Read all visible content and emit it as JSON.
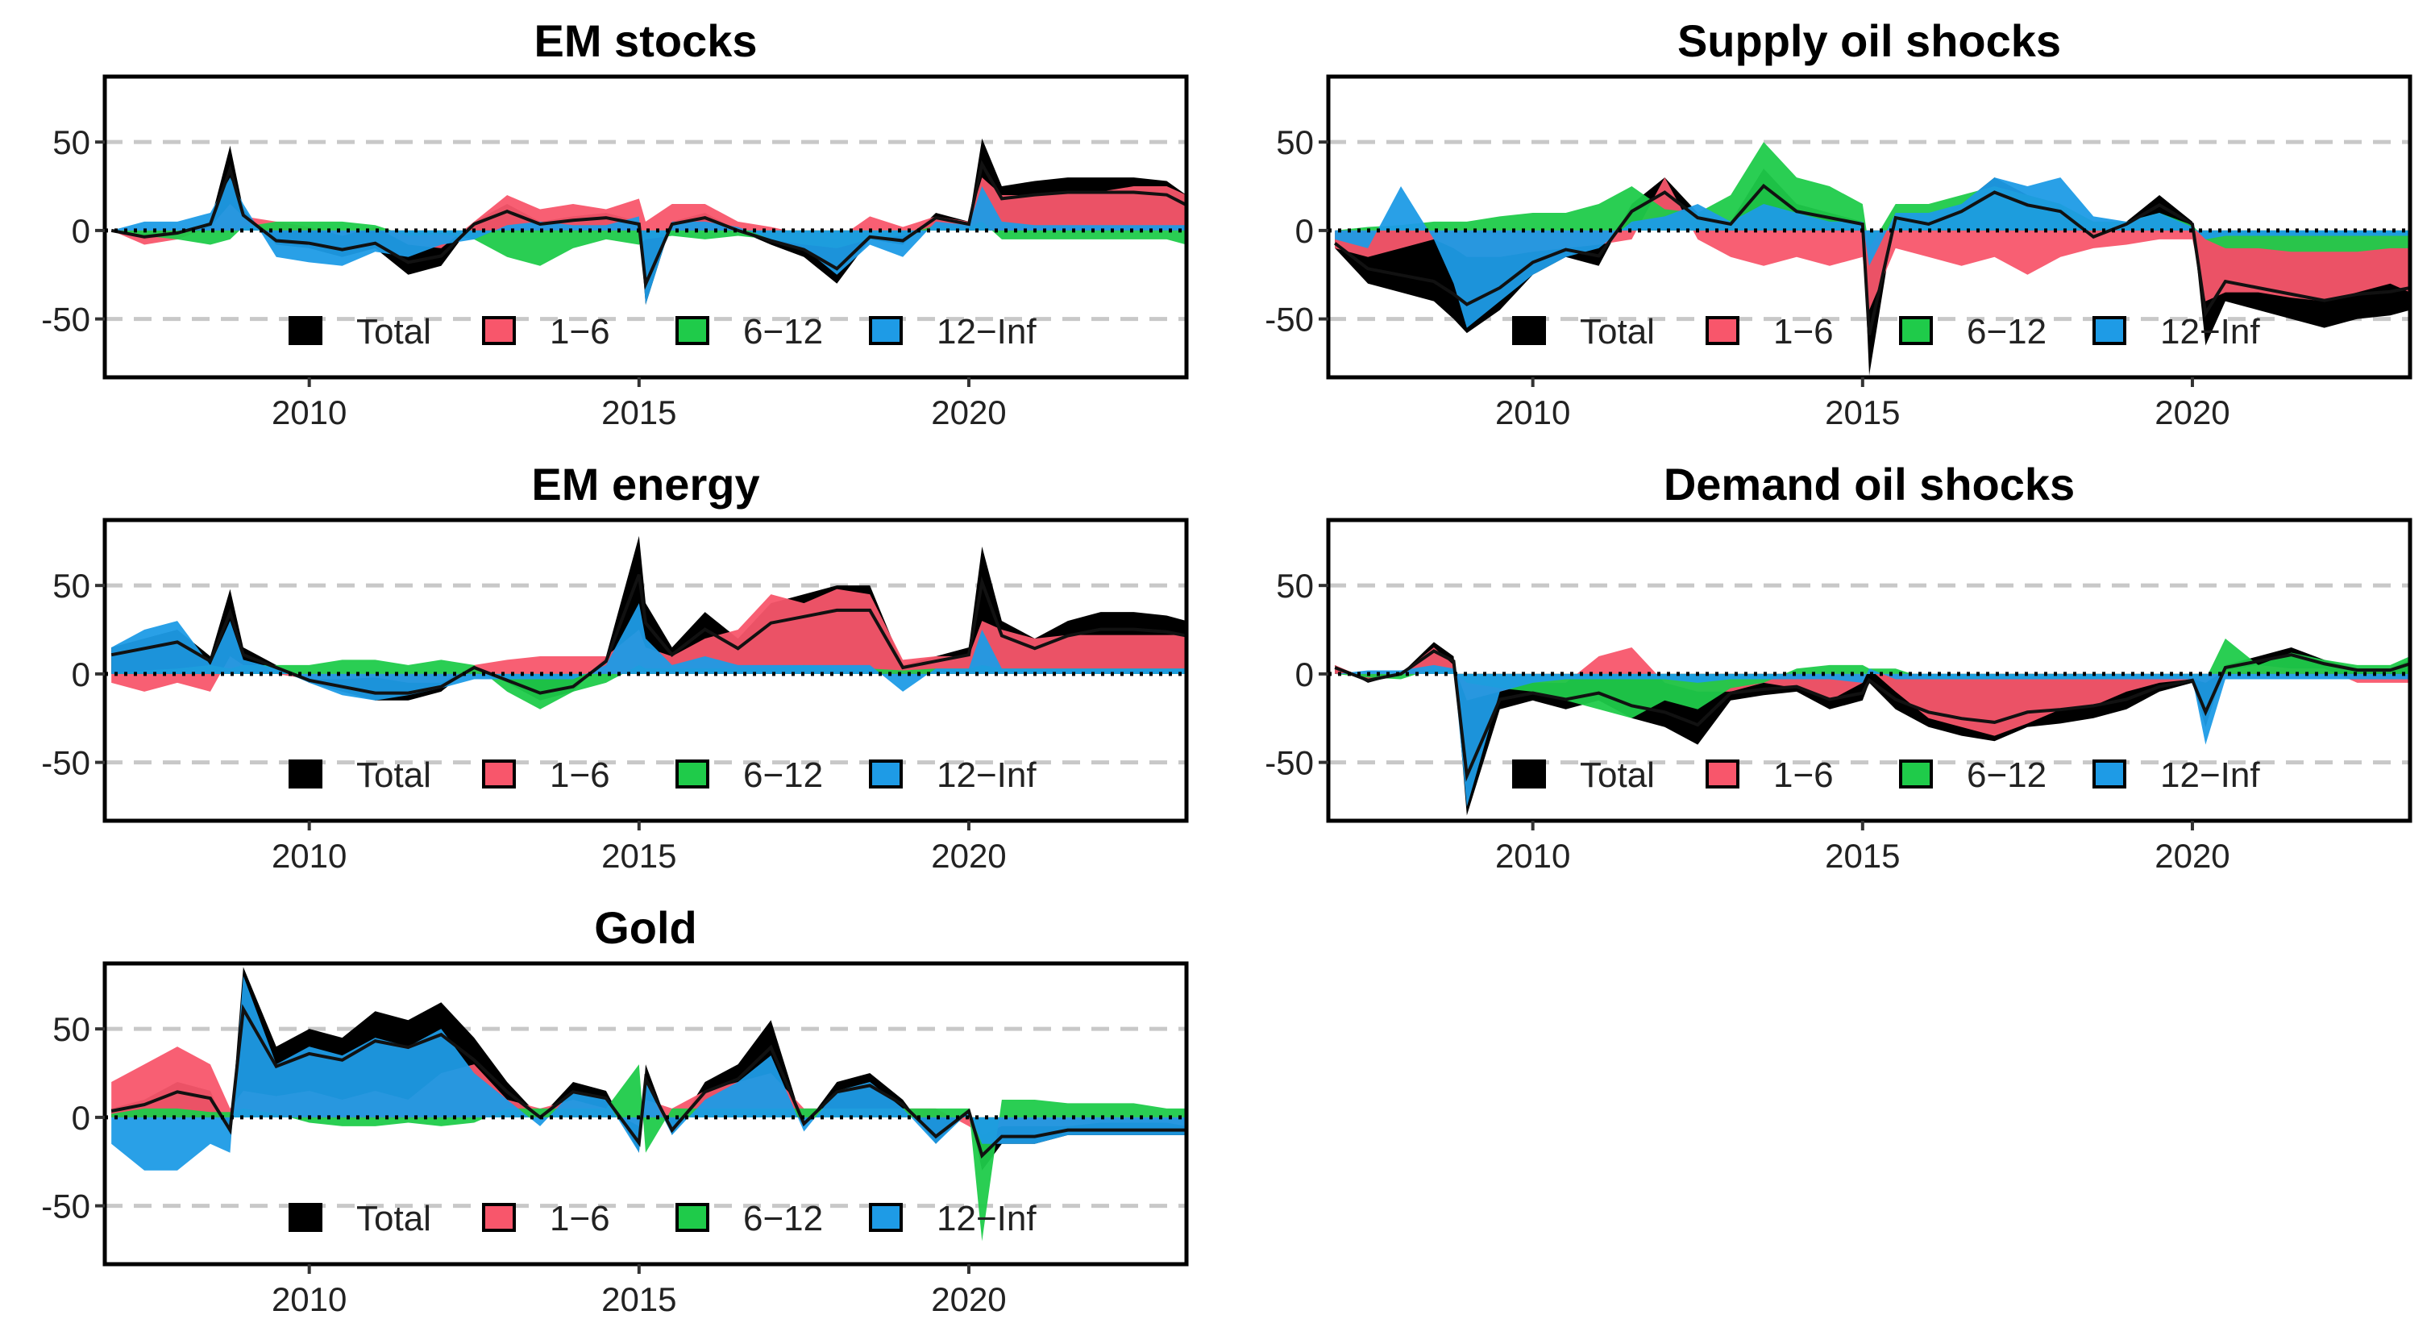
{
  "figure": {
    "legend": [
      "Total",
      "1−6",
      "6−12",
      "12−Inf"
    ],
    "colors": {
      "Total": "#000000",
      "1-6": "#F8566B",
      "6-12": "#1FCB4A",
      "12-Inf": "#1E9BE6",
      "line": "#111111",
      "grid": "#c8c8c8"
    }
  },
  "chart_data": [
    {
      "type": "area",
      "title": "EM stocks",
      "x": [
        2007,
        2007.5,
        2008,
        2008.5,
        2008.8,
        2009,
        2009.5,
        2010,
        2010.5,
        2011,
        2011.5,
        2012,
        2012.5,
        2013,
        2013.5,
        2014,
        2014.5,
        2015,
        2015.1,
        2015.5,
        2016,
        2016.5,
        2017,
        2017.5,
        2018,
        2018.5,
        2019,
        2019.5,
        2020,
        2020.2,
        2020.5,
        2021,
        2021.5,
        2022,
        2022.5,
        2023,
        2023.3
      ],
      "series": [
        {
          "name": "Total",
          "values": [
            0,
            -5,
            -2,
            5,
            48,
            12,
            -8,
            -10,
            -15,
            -10,
            -25,
            -20,
            5,
            15,
            5,
            8,
            10,
            5,
            -42,
            5,
            10,
            0,
            -8,
            -15,
            -30,
            -5,
            -8,
            10,
            5,
            52,
            25,
            28,
            30,
            30,
            30,
            28,
            20
          ]
        },
        {
          "name": "1-6",
          "values": [
            0,
            -8,
            -5,
            2,
            15,
            8,
            5,
            2,
            -3,
            2,
            -8,
            -10,
            5,
            20,
            12,
            15,
            12,
            18,
            5,
            15,
            15,
            5,
            2,
            -2,
            -5,
            8,
            2,
            8,
            5,
            30,
            20,
            20,
            22,
            22,
            25,
            25,
            20
          ]
        },
        {
          "name": "6-12",
          "values": [
            0,
            -3,
            -5,
            -8,
            -5,
            2,
            5,
            5,
            5,
            3,
            -3,
            -2,
            -5,
            -15,
            -20,
            -10,
            -5,
            -8,
            -5,
            -3,
            -5,
            -3,
            -5,
            -8,
            -10,
            -5,
            -3,
            3,
            2,
            5,
            -5,
            -5,
            -5,
            -5,
            -5,
            -5,
            -8
          ]
        },
        {
          "name": "12-Inf",
          "values": [
            0,
            5,
            5,
            10,
            30,
            15,
            -15,
            -18,
            -20,
            -12,
            -15,
            -8,
            -5,
            3,
            5,
            3,
            3,
            8,
            -42,
            5,
            5,
            2,
            -5,
            -10,
            -25,
            -8,
            -15,
            5,
            3,
            25,
            5,
            3,
            3,
            3,
            3,
            3,
            3
          ]
        }
      ],
      "xlim": [
        2006.9,
        2023.3
      ],
      "ylim": [
        -83,
        87
      ],
      "xticks": [
        2010,
        2015,
        2020
      ],
      "yticks": [
        50,
        0,
        -50
      ]
    },
    {
      "type": "area",
      "title": "Supply oil shocks",
      "x": [
        2007,
        2007.5,
        2008,
        2008.5,
        2008.8,
        2009,
        2009.5,
        2010,
        2010.5,
        2011,
        2011.5,
        2012,
        2012.5,
        2013,
        2013.5,
        2014,
        2014.5,
        2015,
        2015.1,
        2015.5,
        2016,
        2016.5,
        2017,
        2017.5,
        2018,
        2018.5,
        2019,
        2019.5,
        2020,
        2020.2,
        2020.5,
        2021,
        2021.5,
        2022,
        2022.5,
        2023,
        2023.3
      ],
      "series": [
        {
          "name": "Total",
          "values": [
            -10,
            -30,
            -35,
            -40,
            -50,
            -58,
            -45,
            -25,
            -15,
            -20,
            15,
            30,
            10,
            5,
            35,
            15,
            10,
            5,
            -82,
            10,
            5,
            15,
            30,
            20,
            15,
            -5,
            5,
            20,
            5,
            -65,
            -40,
            -45,
            -50,
            -55,
            -50,
            -48,
            -45
          ]
        },
        {
          "name": "1-6",
          "values": [
            -10,
            -15,
            -10,
            -5,
            -10,
            -15,
            -15,
            -12,
            -10,
            -8,
            -5,
            30,
            -5,
            -15,
            -20,
            -15,
            -20,
            -15,
            -45,
            -10,
            -15,
            -20,
            -15,
            -25,
            -15,
            -10,
            -8,
            -5,
            -5,
            -40,
            -35,
            -35,
            -38,
            -40,
            -35,
            -30,
            -35
          ]
        },
        {
          "name": "6-12",
          "values": [
            0,
            2,
            3,
            5,
            5,
            5,
            8,
            10,
            10,
            15,
            25,
            12,
            10,
            20,
            50,
            30,
            25,
            15,
            -10,
            15,
            15,
            20,
            25,
            20,
            15,
            5,
            5,
            10,
            3,
            -5,
            -10,
            -10,
            -12,
            -12,
            -12,
            -10,
            -10
          ]
        },
        {
          "name": "12-Inf",
          "values": [
            -5,
            -10,
            25,
            -5,
            -30,
            -55,
            -40,
            -25,
            -15,
            -10,
            5,
            8,
            15,
            5,
            15,
            10,
            5,
            5,
            -20,
            10,
            10,
            15,
            30,
            25,
            30,
            8,
            5,
            10,
            2,
            -5,
            -3,
            -3,
            -3,
            -3,
            -3,
            -3,
            -3
          ]
        }
      ],
      "xlim": [
        2006.9,
        2023.3
      ],
      "ylim": [
        -83,
        87
      ],
      "xticks": [
        2010,
        2015,
        2020
      ],
      "yticks": [
        50,
        0,
        -50
      ]
    },
    {
      "type": "area",
      "title": "EM energy",
      "x": [
        2007,
        2007.5,
        2008,
        2008.5,
        2008.8,
        2009,
        2009.5,
        2010,
        2010.5,
        2011,
        2011.5,
        2012,
        2012.5,
        2013,
        2013.5,
        2014,
        2014.5,
        2015,
        2015.1,
        2015.5,
        2016,
        2016.5,
        2017,
        2017.5,
        2018,
        2018.5,
        2019,
        2019.5,
        2020,
        2020.2,
        2020.5,
        2021,
        2021.5,
        2022,
        2022.5,
        2023,
        2023.3
      ],
      "series": [
        {
          "name": "Total",
          "values": [
            15,
            20,
            25,
            10,
            48,
            15,
            5,
            -5,
            -10,
            -15,
            -15,
            -10,
            5,
            -5,
            -15,
            -10,
            10,
            78,
            40,
            15,
            35,
            20,
            40,
            45,
            50,
            50,
            5,
            10,
            15,
            72,
            30,
            20,
            30,
            35,
            35,
            33,
            30
          ]
        },
        {
          "name": "1-6",
          "values": [
            -5,
            -10,
            -5,
            -10,
            10,
            5,
            0,
            -3,
            -3,
            -2,
            -5,
            -5,
            5,
            8,
            10,
            10,
            10,
            25,
            15,
            10,
            20,
            25,
            45,
            40,
            48,
            45,
            8,
            10,
            10,
            30,
            25,
            20,
            22,
            22,
            22,
            22,
            22
          ]
        },
        {
          "name": "6-12",
          "values": [
            0,
            2,
            3,
            5,
            3,
            5,
            5,
            5,
            8,
            8,
            5,
            8,
            5,
            -10,
            -20,
            -10,
            -5,
            5,
            3,
            3,
            3,
            3,
            3,
            5,
            3,
            3,
            2,
            3,
            3,
            5,
            3,
            3,
            3,
            3,
            3,
            3,
            3
          ]
        },
        {
          "name": "12-Inf",
          "values": [
            15,
            25,
            30,
            5,
            30,
            8,
            3,
            -5,
            -12,
            -15,
            -12,
            -8,
            -3,
            -3,
            -3,
            -3,
            5,
            40,
            20,
            5,
            10,
            5,
            5,
            5,
            5,
            5,
            -10,
            3,
            3,
            25,
            3,
            3,
            3,
            3,
            3,
            3,
            3
          ]
        }
      ],
      "xlim": [
        2006.9,
        2023.3
      ],
      "ylim": [
        -83,
        87
      ],
      "xticks": [
        2010,
        2015,
        2020
      ],
      "yticks": [
        50,
        0,
        -50
      ]
    },
    {
      "type": "area",
      "title": "Demand oil shocks",
      "x": [
        2007,
        2007.5,
        2008,
        2008.5,
        2008.8,
        2009,
        2009.5,
        2010,
        2010.5,
        2011,
        2011.5,
        2012,
        2012.5,
        2013,
        2013.5,
        2014,
        2014.5,
        2015,
        2015.1,
        2015.5,
        2016,
        2016.5,
        2017,
        2017.5,
        2018,
        2018.5,
        2019,
        2019.5,
        2020,
        2020.2,
        2020.5,
        2021,
        2021.5,
        2022,
        2022.5,
        2023,
        2023.3
      ],
      "series": [
        {
          "name": "Total",
          "values": [
            5,
            -5,
            0,
            18,
            10,
            -80,
            -20,
            -15,
            -20,
            -15,
            -25,
            -30,
            -40,
            -15,
            -12,
            -10,
            -20,
            -15,
            -5,
            -20,
            -30,
            -35,
            -38,
            -30,
            -28,
            -25,
            -20,
            -10,
            -5,
            -30,
            5,
            10,
            15,
            8,
            3,
            3,
            8
          ]
        },
        {
          "name": "1-6",
          "values": [
            5,
            -3,
            0,
            15,
            5,
            -15,
            -10,
            -5,
            -5,
            10,
            15,
            -5,
            -10,
            -10,
            -5,
            -8,
            -15,
            -5,
            3,
            -10,
            -25,
            -30,
            -35,
            -28,
            -20,
            -18,
            -10,
            -5,
            -3,
            -5,
            2,
            5,
            3,
            3,
            -5,
            -5,
            -5
          ]
        },
        {
          "name": "6-12",
          "values": [
            0,
            -2,
            -3,
            3,
            2,
            -5,
            -8,
            -10,
            -15,
            -20,
            -25,
            -15,
            -20,
            -8,
            -5,
            3,
            5,
            5,
            3,
            3,
            -3,
            -3,
            -3,
            -3,
            -3,
            -3,
            -2,
            -2,
            -2,
            -3,
            20,
            5,
            12,
            8,
            5,
            5,
            10
          ]
        },
        {
          "name": "12-Inf",
          "values": [
            0,
            2,
            2,
            5,
            3,
            -75,
            -10,
            -5,
            -3,
            -3,
            -3,
            -3,
            -5,
            -3,
            -3,
            -3,
            -3,
            -5,
            3,
            -3,
            -3,
            -3,
            -3,
            -3,
            -3,
            -3,
            -3,
            -3,
            -3,
            -40,
            -3,
            -3,
            -3,
            -3,
            -3,
            -3,
            -3
          ]
        }
      ],
      "xlim": [
        2006.9,
        2023.3
      ],
      "ylim": [
        -83,
        87
      ],
      "xticks": [
        2010,
        2015,
        2020
      ],
      "yticks": [
        50,
        0,
        -50
      ]
    },
    {
      "type": "area",
      "title": "Gold",
      "x": [
        2007,
        2007.5,
        2008,
        2008.5,
        2008.8,
        2009,
        2009.5,
        2010,
        2010.5,
        2011,
        2011.5,
        2012,
        2012.5,
        2013,
        2013.5,
        2014,
        2014.5,
        2015,
        2015.1,
        2015.5,
        2016,
        2016.5,
        2017,
        2017.5,
        2018,
        2018.5,
        2019,
        2019.5,
        2020,
        2020.2,
        2020.5,
        2021,
        2021.5,
        2022,
        2022.5,
        2023,
        2023.3
      ],
      "series": [
        {
          "name": "Total",
          "values": [
            5,
            10,
            20,
            15,
            -10,
            85,
            40,
            50,
            45,
            60,
            55,
            65,
            45,
            20,
            0,
            20,
            15,
            -20,
            30,
            -10,
            20,
            30,
            55,
            -5,
            20,
            25,
            10,
            -15,
            5,
            -30,
            -15,
            -15,
            -10,
            -10,
            -10,
            -10,
            -10
          ]
        },
        {
          "name": "1-6",
          "values": [
            20,
            30,
            40,
            30,
            5,
            15,
            12,
            15,
            10,
            15,
            10,
            25,
            30,
            10,
            5,
            10,
            5,
            -5,
            10,
            5,
            15,
            20,
            25,
            5,
            5,
            5,
            5,
            5,
            -5,
            -10,
            -5,
            -5,
            -5,
            -3,
            -3,
            -3,
            -5
          ]
        },
        {
          "name": "6-12",
          "values": [
            2,
            5,
            5,
            3,
            3,
            5,
            2,
            -3,
            -5,
            -5,
            -3,
            -5,
            -3,
            5,
            5,
            5,
            5,
            30,
            -20,
            5,
            5,
            5,
            5,
            5,
            5,
            5,
            5,
            5,
            5,
            -70,
            10,
            10,
            8,
            8,
            8,
            5,
            5
          ]
        },
        {
          "name": "12-Inf",
          "values": [
            -15,
            -30,
            -30,
            -15,
            -20,
            80,
            30,
            40,
            35,
            45,
            40,
            50,
            25,
            10,
            -5,
            15,
            10,
            -20,
            20,
            -10,
            10,
            20,
            35,
            -8,
            15,
            20,
            5,
            -15,
            3,
            -15,
            -15,
            -15,
            -10,
            -10,
            -10,
            -10,
            -10
          ]
        }
      ],
      "xlim": [
        2006.9,
        2023.3
      ],
      "ylim": [
        -83,
        87
      ],
      "xticks": [
        2010,
        2015,
        2020
      ],
      "yticks": [
        50,
        0,
        -50
      ]
    }
  ]
}
